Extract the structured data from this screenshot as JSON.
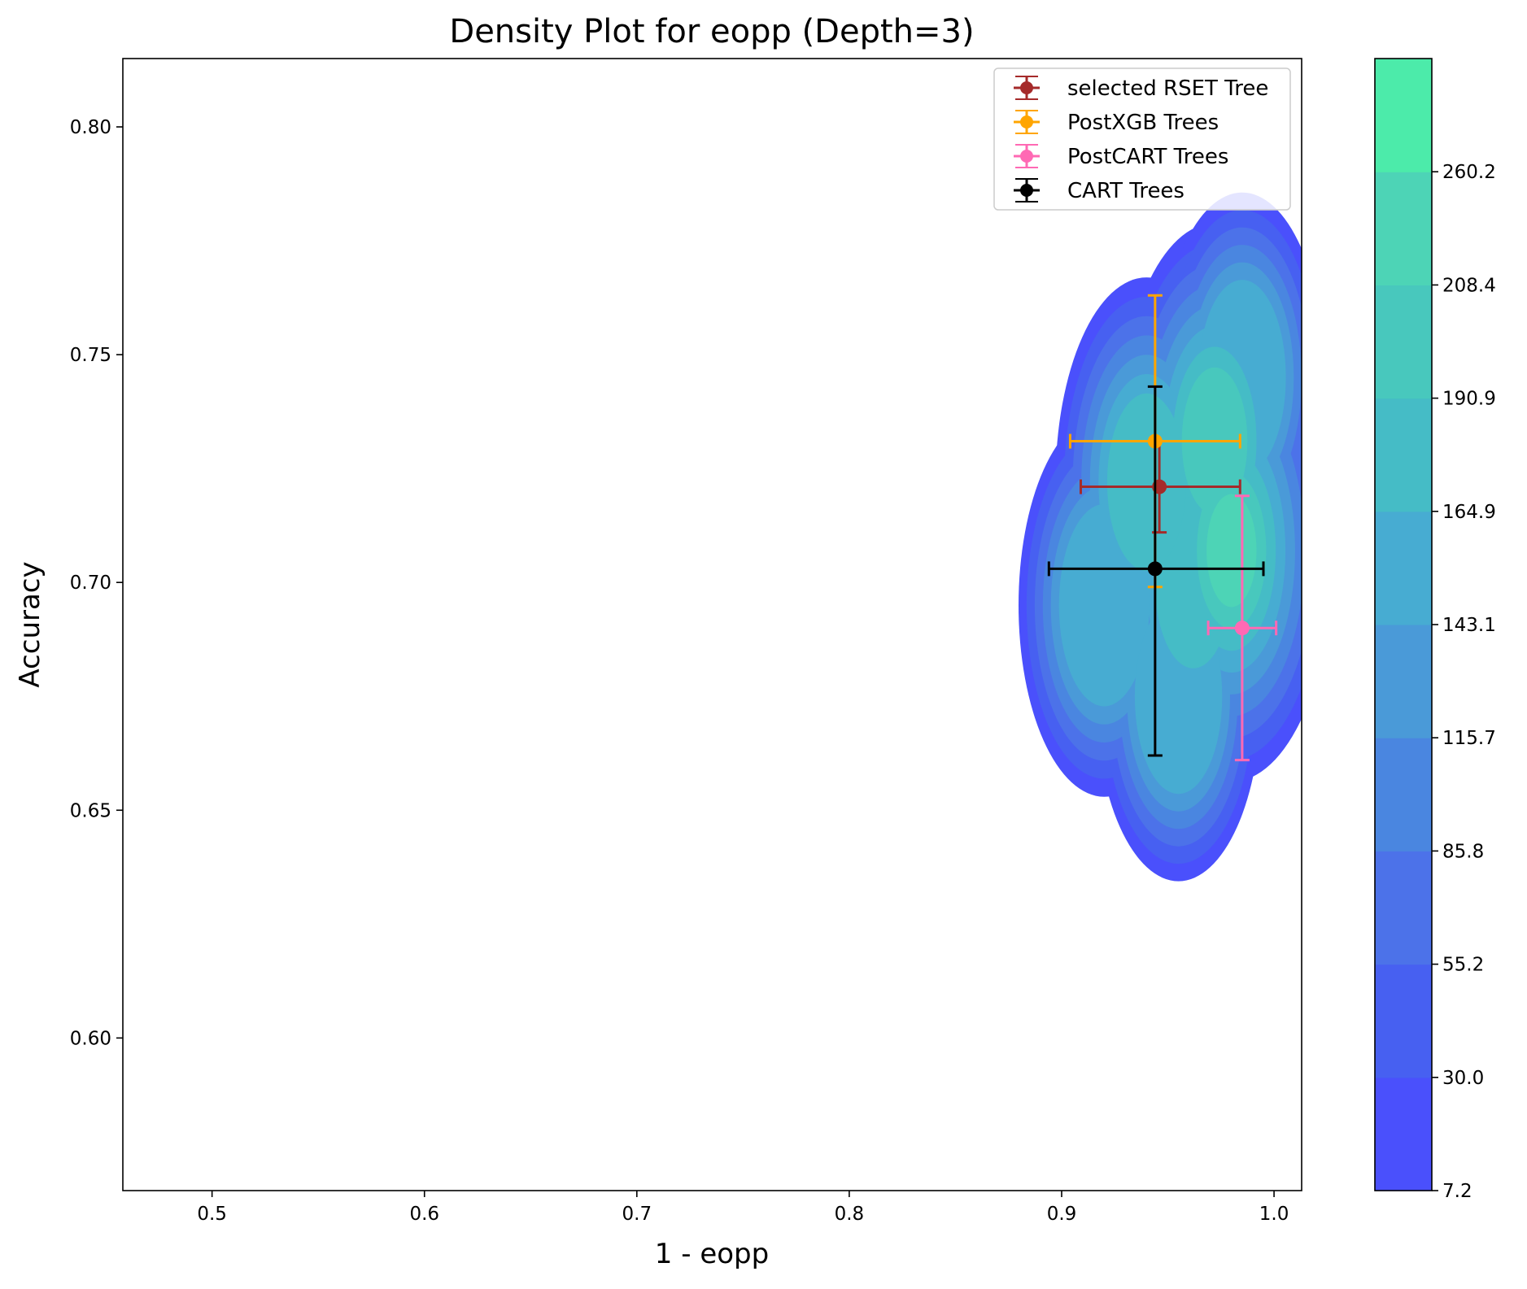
{
  "chart_data": {
    "type": "density-contour",
    "title": "Density Plot for eopp (Depth=3)",
    "xlabel": "1 - eopp",
    "ylabel": "Accuracy",
    "xlim": [
      0.458,
      1.013
    ],
    "ylim": [
      0.5665,
      0.815
    ],
    "xticks": [
      {
        "value": 0.5,
        "label": "0.5"
      },
      {
        "value": 0.6,
        "label": "0.6"
      },
      {
        "value": 0.7,
        "label": "0.7"
      },
      {
        "value": 0.8,
        "label": "0.8"
      },
      {
        "value": 0.9,
        "label": "0.9"
      },
      {
        "value": 1.0,
        "label": "1.0"
      }
    ],
    "yticks": [
      {
        "value": 0.6,
        "label": "0.60"
      },
      {
        "value": 0.65,
        "label": "0.65"
      },
      {
        "value": 0.7,
        "label": "0.70"
      },
      {
        "value": 0.75,
        "label": "0.75"
      },
      {
        "value": 0.8,
        "label": "0.80"
      }
    ],
    "grid": false,
    "legend_position": "top-right",
    "colorbar": {
      "levels": [
        {
          "value": 7.2,
          "label": "7.2"
        },
        {
          "value": 30.0,
          "label": "30.0"
        },
        {
          "value": 55.2,
          "label": "55.2"
        },
        {
          "value": 85.8,
          "label": "85.8"
        },
        {
          "value": 115.7,
          "label": "115.7"
        },
        {
          "value": 143.1,
          "label": "143.1"
        },
        {
          "value": 164.9,
          "label": "164.9"
        },
        {
          "value": 190.9,
          "label": "190.9"
        },
        {
          "value": 208.4,
          "label": "208.4"
        },
        {
          "value": 260.2,
          "label": "260.2"
        }
      ],
      "colors": [
        "#4a50fc",
        "#4760f1",
        "#4c72e9",
        "#4a86e0",
        "#4a9ad8",
        "#47acd2",
        "#45bcc6",
        "#48c8bd",
        "#4dd4b6",
        "#4cebaa"
      ]
    },
    "density": {
      "centers": [
        {
          "x": 0.972,
          "y": 0.731,
          "weight": 0.55
        },
        {
          "x": 0.98,
          "y": 0.707,
          "weight": 0.65
        },
        {
          "x": 0.962,
          "y": 0.7,
          "weight": 0.4
        },
        {
          "x": 0.94,
          "y": 0.722,
          "weight": 0.45
        },
        {
          "x": 0.92,
          "y": 0.695,
          "weight": 0.35
        },
        {
          "x": 0.955,
          "y": 0.675,
          "weight": 0.3
        },
        {
          "x": 0.985,
          "y": 0.745,
          "weight": 0.3
        }
      ]
    },
    "series": [
      {
        "name": "selected RSET Tree",
        "color": "#a52a2a",
        "x": 0.946,
        "y": 0.721,
        "xerr": [
          0.909,
          0.984
        ],
        "yerr": [
          0.711,
          0.731
        ]
      },
      {
        "name": "PostXGB Trees",
        "color": "#ffa500",
        "x": 0.944,
        "y": 0.731,
        "xerr": [
          0.904,
          0.984
        ],
        "yerr": [
          0.699,
          0.763
        ]
      },
      {
        "name": "PostCART Trees",
        "color": "#ff69b4",
        "x": 0.985,
        "y": 0.69,
        "xerr": [
          0.969,
          1.001
        ],
        "yerr": [
          0.661,
          0.719
        ]
      },
      {
        "name": "CART Trees",
        "color": "#000000",
        "x": 0.944,
        "y": 0.703,
        "xerr": [
          0.894,
          0.995
        ],
        "yerr": [
          0.662,
          0.743
        ]
      }
    ]
  }
}
